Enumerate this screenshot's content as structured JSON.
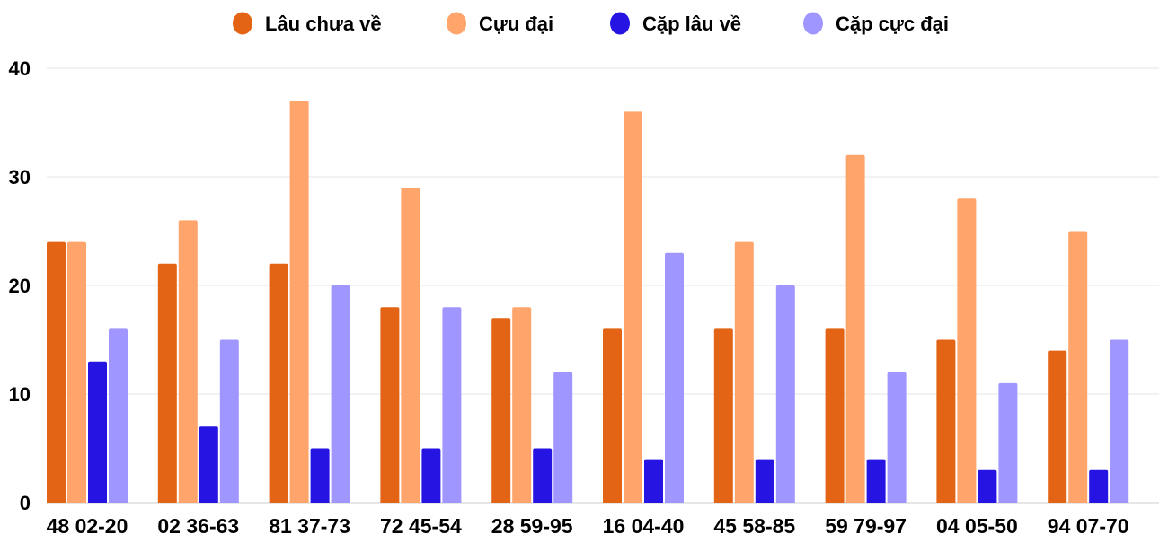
{
  "chart_data": {
    "type": "bar",
    "title": "",
    "xlabel": "",
    "ylabel": "",
    "ylim": [
      0,
      40
    ],
    "yticks": [
      0,
      10,
      20,
      30,
      40
    ],
    "grid": true,
    "legend_position": "top",
    "categories": [
      "48 02-20",
      "02 36-63",
      "81 37-73",
      "72 45-54",
      "28 59-95",
      "16 04-40",
      "45 58-85",
      "59 79-97",
      "04 05-50",
      "94 07-70"
    ],
    "series": [
      {
        "name": "Lâu chưa về",
        "color": "#e36414",
        "values": [
          24,
          22,
          22,
          18,
          17,
          16,
          16,
          16,
          15,
          14
        ]
      },
      {
        "name": "Cựu đại",
        "color": "#ffa46a",
        "values": [
          24,
          26,
          37,
          29,
          18,
          36,
          24,
          32,
          28,
          25
        ]
      },
      {
        "name": "Cặp lâu về",
        "color": "#2614e3",
        "values": [
          13,
          7,
          5,
          5,
          5,
          4,
          4,
          4,
          3,
          3
        ]
      },
      {
        "name": "Cặp cực đại",
        "color": "#a096ff",
        "values": [
          16,
          15,
          20,
          18,
          12,
          23,
          20,
          12,
          11,
          15
        ]
      }
    ]
  }
}
